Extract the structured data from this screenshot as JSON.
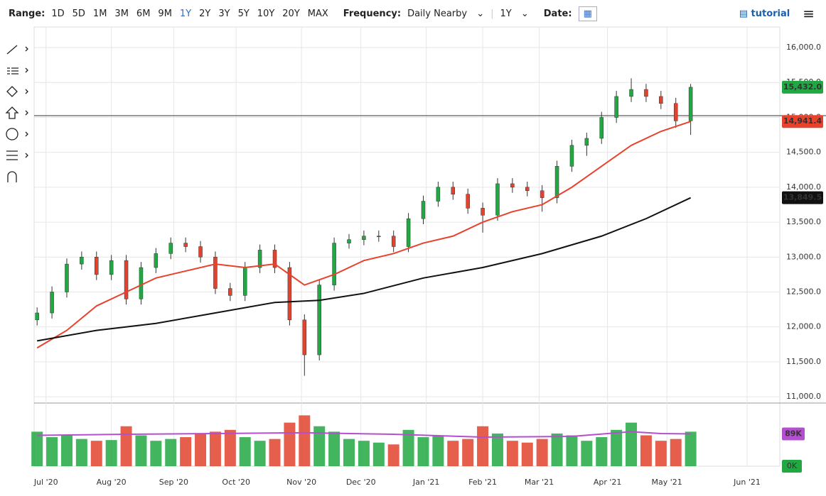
{
  "toolbar": {
    "range_label": "Range:",
    "ranges": [
      "1D",
      "5D",
      "1M",
      "3M",
      "6M",
      "9M",
      "1Y",
      "2Y",
      "3Y",
      "5Y",
      "10Y",
      "20Y",
      "MAX"
    ],
    "active_range": "1Y",
    "frequency_label": "Frequency:",
    "frequency": "Daily Nearby",
    "period": "1Y",
    "date_label": "Date:",
    "tutorial": "tutorial"
  },
  "chart_data": {
    "type": "candlestick",
    "xlim": [
      -4,
      247
    ],
    "xticks": [
      {
        "value": 0,
        "label": "Jul '20"
      },
      {
        "value": 22,
        "label": "Aug '20"
      },
      {
        "value": 43,
        "label": "Sep '20"
      },
      {
        "value": 64,
        "label": "Oct '20"
      },
      {
        "value": 86,
        "label": "Nov '20"
      },
      {
        "value": 106,
        "label": "Dec '20"
      },
      {
        "value": 128,
        "label": "Jan '21"
      },
      {
        "value": 147,
        "label": "Feb '21"
      },
      {
        "value": 166,
        "label": "Mar '21"
      },
      {
        "value": 189,
        "label": "Apr '21"
      },
      {
        "value": 209,
        "label": "May '21"
      },
      {
        "value": 236,
        "label": "Jun '21"
      }
    ],
    "ylim": [
      10940,
      16295
    ],
    "yticks": [
      {
        "value": 11000,
        "label": "11,000.0"
      },
      {
        "value": 11500,
        "label": "11,500.0"
      },
      {
        "value": 12000,
        "label": "12,000.0"
      },
      {
        "value": 12500,
        "label": "12,500.0"
      },
      {
        "value": 13000,
        "label": "13,000.0"
      },
      {
        "value": 13500,
        "label": "13,500.0"
      },
      {
        "value": 14000,
        "label": "14,000.0"
      },
      {
        "value": 14500,
        "label": "14,500.0"
      },
      {
        "value": 15000,
        "label": "15,000.0"
      },
      {
        "value": 15500,
        "label": "15,500.0"
      },
      {
        "value": 16000,
        "label": "16,000.0"
      }
    ],
    "grid": true,
    "up_color": "#22a843",
    "down_color": "#e2432e",
    "hline": 15025,
    "candles": {
      "x": [
        -3,
        2,
        7,
        12,
        17,
        22,
        27,
        32,
        37,
        42,
        47,
        52,
        57,
        62,
        67,
        72,
        77,
        82,
        87,
        92,
        97,
        102,
        107,
        112,
        117,
        122,
        127,
        132,
        137,
        142,
        147,
        152,
        157,
        162,
        167,
        172,
        177,
        182,
        187,
        192,
        197,
        202,
        207,
        212,
        217
      ],
      "open": [
        12100,
        12200,
        12500,
        12900,
        13000,
        12750,
        12950,
        12400,
        12850,
        13050,
        13200,
        13150,
        13000,
        12550,
        12450,
        12850,
        13100,
        12850,
        12100,
        11600,
        12600,
        13200,
        13250,
        13300,
        13300,
        13150,
        13550,
        13800,
        14000,
        13900,
        13700,
        13600,
        14050,
        14000,
        13950,
        13850,
        14300,
        14600,
        14700,
        15000,
        15300,
        15400,
        15300,
        15200,
        14950
      ],
      "high": [
        12280,
        12580,
        12980,
        13080,
        13080,
        13030,
        13030,
        12930,
        13130,
        13280,
        13280,
        13230,
        13080,
        12630,
        12930,
        13180,
        13180,
        12930,
        12180,
        12680,
        13280,
        13330,
        13380,
        13380,
        13380,
        13630,
        13880,
        14080,
        14080,
        13980,
        13780,
        14130,
        14130,
        14080,
        14030,
        14380,
        14680,
        14780,
        15080,
        15380,
        15560,
        15480,
        15380,
        15280,
        15480
      ],
      "low": [
        12020,
        12120,
        12420,
        12820,
        12670,
        12670,
        12320,
        12320,
        12770,
        12970,
        13070,
        12920,
        12470,
        12370,
        12370,
        12770,
        12770,
        12020,
        11300,
        11520,
        12520,
        13120,
        13170,
        13220,
        13070,
        13070,
        13470,
        13720,
        13820,
        13620,
        13350,
        13520,
        13920,
        13870,
        13650,
        13770,
        14220,
        14450,
        14620,
        14920,
        15220,
        15220,
        15120,
        14850,
        14750
      ],
      "close": [
        12200,
        12500,
        12900,
        13000,
        12750,
        12950,
        12400,
        12850,
        13050,
        13200,
        13150,
        13000,
        12550,
        12450,
        12850,
        13100,
        12850,
        12100,
        11600,
        12600,
        13200,
        13250,
        13300,
        13300,
        13150,
        13550,
        13800,
        14000,
        13900,
        13700,
        13600,
        14050,
        14000,
        13950,
        13850,
        14300,
        14600,
        14700,
        15000,
        15300,
        15400,
        15300,
        15200,
        14950,
        15432
      ],
      "value_labels_last": "15,432.0"
    },
    "series": [
      {
        "color": "#e8412c",
        "x": [
          -3,
          7,
          17,
          27,
          37,
          47,
          57,
          67,
          77,
          82,
          87,
          97,
          107,
          117,
          127,
          137,
          147,
          157,
          167,
          177,
          187,
          197,
          207,
          217
        ],
        "values": [
          11700,
          11950,
          12300,
          12500,
          12700,
          12800,
          12900,
          12850,
          12900,
          12750,
          12600,
          12750,
          12950,
          13050,
          13200,
          13300,
          13500,
          13650,
          13750,
          14000,
          14300,
          14600,
          14800,
          14941.4
        ],
        "last_label": "14,941.4"
      },
      {
        "color": "#111111",
        "x": [
          -3,
          17,
          37,
          57,
          77,
          92,
          107,
          127,
          147,
          167,
          187,
          202,
          217
        ],
        "values": [
          11800,
          11950,
          12050,
          12200,
          12350,
          12380,
          12480,
          12700,
          12850,
          13050,
          13300,
          13550,
          13849.5
        ],
        "last_label": "13,849.5"
      }
    ],
    "volume": {
      "ylim": [
        0,
        170
      ],
      "yticks": [
        {
          "value": 0,
          "label": "0K"
        }
      ],
      "values": [
        95,
        80,
        85,
        75,
        70,
        72,
        110,
        85,
        70,
        75,
        80,
        90,
        95,
        100,
        80,
        70,
        75,
        120,
        140,
        110,
        95,
        75,
        70,
        65,
        60,
        100,
        80,
        85,
        70,
        75,
        110,
        90,
        70,
        65,
        75,
        90,
        85,
        70,
        80,
        100,
        120,
        85,
        70,
        75,
        95
      ],
      "ma": {
        "color": "#b44fd0",
        "x": [
          -3,
          27,
          57,
          87,
          117,
          147,
          177,
          197,
          207,
          217
        ],
        "values": [
          85,
          88,
          90,
          92,
          88,
          80,
          82,
          95,
          90,
          89
        ],
        "last_label": "89K"
      }
    }
  }
}
